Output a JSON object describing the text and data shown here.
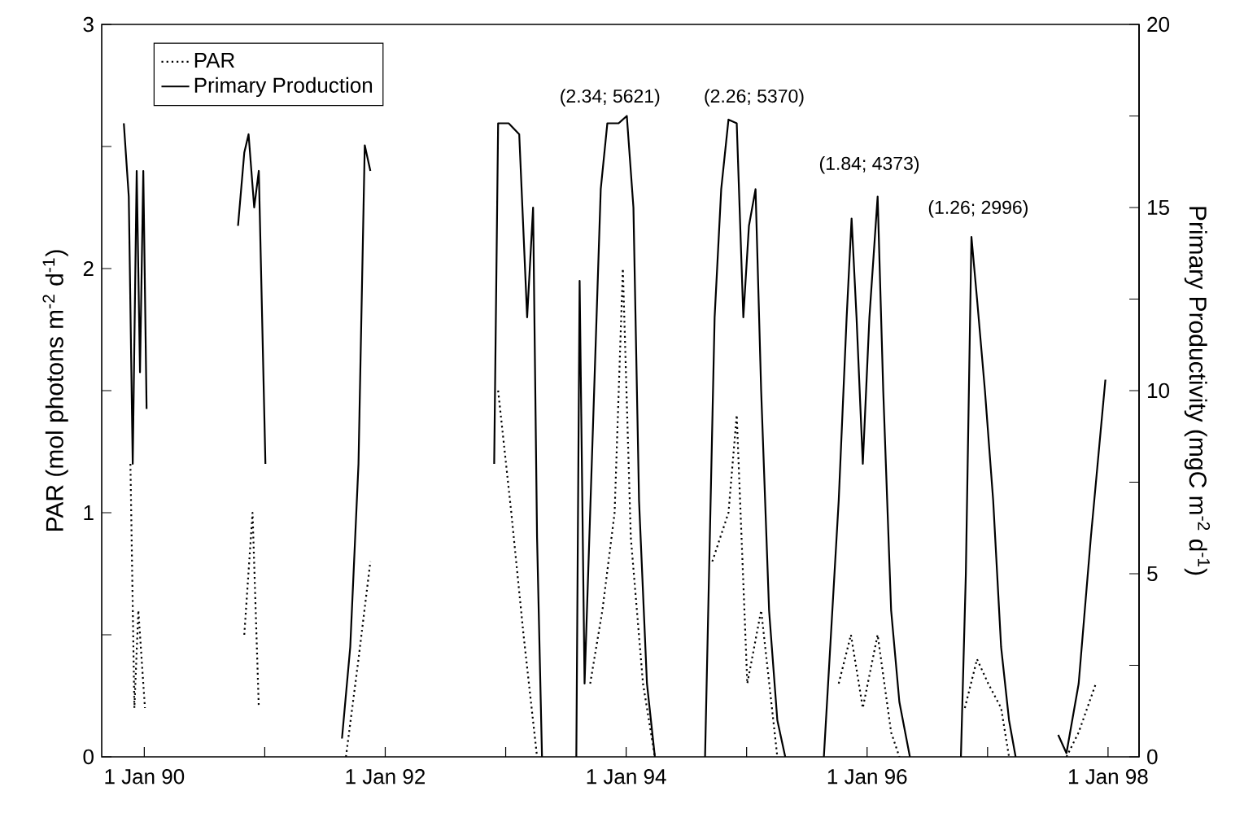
{
  "chart_data": {
    "type": "line",
    "ylabel": "PAR (mol photons m$^{-2}$ d$^{-1}$)",
    "y2label": "Primary Productivity (mgC m$^{-2}$ d$^{-1}$)",
    "xlim": [
      "1989-08-25",
      "1998-04-05"
    ],
    "xticks": [
      {
        "value": "1990-01-01",
        "label": "1 Jan 90"
      },
      {
        "value": "1991-01-01",
        "label": null
      },
      {
        "value": "1992-01-01",
        "label": "1 Jan 92"
      },
      {
        "value": "1993-01-01",
        "label": null
      },
      {
        "value": "1994-01-01",
        "label": "1 Jan 94"
      },
      {
        "value": "1995-01-01",
        "label": null
      },
      {
        "value": "1996-01-01",
        "label": "1 Jan 96"
      },
      {
        "value": "1997-01-01",
        "label": null
      },
      {
        "value": "1998-01-01",
        "label": "1 Jan 98"
      }
    ],
    "ylim": [
      0,
      3
    ],
    "yticks": [
      0,
      {
        "value": 0.5,
        "label": null
      },
      1,
      {
        "value": 1.5,
        "label": null
      },
      2,
      {
        "value": 2.5,
        "label": null
      },
      3
    ],
    "y2lim": [
      0,
      20
    ],
    "y2ticks": [
      0,
      {
        "value": 2.5,
        "label": null
      },
      5,
      {
        "value": 7.5,
        "label": null
      },
      10,
      {
        "value": 12.5,
        "label": null
      },
      15,
      {
        "value": 17.5,
        "label": null
      },
      20
    ],
    "legend": "top left",
    "series": [
      {
        "name": "PAR",
        "color": "#000000",
        "line_style": "dotted",
        "x": [
          "1989-11-20",
          "1989-12-02",
          "1989-12-14",
          "1990-01-03",
          "1990-03-01",
          "1990-10-31",
          "1990-11-25",
          "1990-12-14",
          "1991-03-01",
          "1991-09-04",
          "1991-10-12",
          "1991-11-17",
          "1992-03-01",
          "1992-12-09",
          "1993-01-18",
          "1993-02-24",
          "1993-04-06",
          "1993-06-01",
          "1993-09-14",
          "1993-10-21",
          "1993-11-27",
          "1993-12-22",
          "1994-01-15",
          "1994-02-21",
          "1994-03-29",
          "1994-06-01",
          "1994-09-19",
          "1994-11-07",
          "1994-12-02",
          "1995-01-03",
          "1995-02-14",
          "1995-04-04",
          "1995-06-01",
          "1995-10-07",
          "1995-11-13",
          "1995-12-19",
          "1996-02-02",
          "1996-03-14",
          "1996-04-08",
          "1996-07-01",
          "1996-10-24",
          "1996-11-30",
          "1997-01-03",
          "1997-02-11",
          "1997-03-07",
          "1997-06-01",
          "1997-08-28",
          "1997-10-04",
          "1997-11-25"
        ],
        "values": [
          1.2,
          0.2,
          0.6,
          0.2,
          null,
          0.5,
          1.0,
          0.2,
          null,
          0,
          0.4,
          0.8,
          null,
          1.5,
          1.0,
          0.5,
          0,
          null,
          0.3,
          0.6,
          1.0,
          2.0,
          0.9,
          0.3,
          0,
          null,
          0.8,
          1.0,
          1.4,
          0.3,
          0.6,
          0,
          null,
          0.3,
          0.5,
          0.2,
          0.5,
          0.1,
          0,
          null,
          0.2,
          0.4,
          0.3,
          0.2,
          0,
          null,
          0,
          0.1,
          0.3
        ]
      },
      {
        "name": "Primary Production",
        "color": "#000000",
        "line_style": "solid",
        "axis": "y2",
        "x": [
          "1989-10-31",
          "1989-11-15",
          "1989-11-27",
          "1989-12-09",
          "1989-12-19",
          "1989-12-29",
          "1990-01-08",
          "1990-03-01",
          "1990-10-12",
          "1990-10-31",
          "1990-11-13",
          "1990-11-30",
          "1990-12-14",
          "1991-01-03",
          "1991-03-01",
          "1991-08-23",
          "1991-09-17",
          "1991-10-12",
          "1991-10-31",
          "1991-11-17",
          "1992-03-01",
          "1992-11-27",
          "1992-12-09",
          "1993-01-10",
          "1993-02-11",
          "1993-03-07",
          "1993-03-25",
          "1993-04-06",
          "1993-04-21",
          "1993-06-01",
          "1993-08-03",
          "1993-08-13",
          "1993-08-28",
          "1993-09-26",
          "1993-10-16",
          "1993-11-05",
          "1993-12-09",
          "1994-01-03",
          "1994-01-23",
          "1994-02-09",
          "1994-03-05",
          "1994-03-29",
          "1994-06-01",
          "1994-08-28",
          "1994-09-26",
          "1994-10-16",
          "1994-11-07",
          "1994-12-02",
          "1994-12-22",
          "1995-01-08",
          "1995-01-28",
          "1995-02-14",
          "1995-03-10",
          "1995-04-04",
          "1995-04-28",
          "1995-06-01",
          "1995-08-23",
          "1995-10-07",
          "1995-10-31",
          "1995-11-15",
          "1995-11-30",
          "1995-12-19",
          "1996-01-08",
          "1996-02-02",
          "1996-02-19",
          "1996-03-14",
          "1996-04-08",
          "1996-05-10",
          "1996-07-01",
          "1996-10-12",
          "1996-10-27",
          "1996-11-13",
          "1996-11-30",
          "1996-12-24",
          "1997-01-18",
          "1997-02-11",
          "1997-03-07",
          "1997-03-27",
          "1997-06-01",
          "1997-08-03",
          "1997-08-28",
          "1997-10-04",
          "1997-11-10",
          "1997-12-24"
        ],
        "values": [
          17.3,
          15.3,
          8,
          16,
          10.5,
          16,
          9.5,
          null,
          14.5,
          16.5,
          17,
          15,
          16,
          8,
          null,
          0.5,
          3,
          8,
          16.7,
          16,
          null,
          8,
          17.3,
          17.3,
          17,
          12,
          15,
          6,
          0,
          null,
          0,
          13,
          2,
          10,
          15.5,
          17.3,
          17.3,
          17.5,
          15,
          7,
          2,
          0,
          null,
          0,
          12,
          15.5,
          17.4,
          17.3,
          12,
          14.5,
          15.5,
          10,
          4,
          1,
          0,
          null,
          0,
          7,
          12,
          14.7,
          12,
          8,
          12,
          15.3,
          10,
          4,
          1.5,
          0,
          null,
          0,
          5,
          14.2,
          12.5,
          10,
          7,
          3,
          1,
          0,
          null,
          0.6,
          0.1,
          2,
          6,
          10.3
        ]
      }
    ],
    "annotations": [
      "(2.34; 5621)",
      "(2.26; 5370)",
      "(1.84; 4373)",
      "(1.26; 2996)"
    ]
  }
}
